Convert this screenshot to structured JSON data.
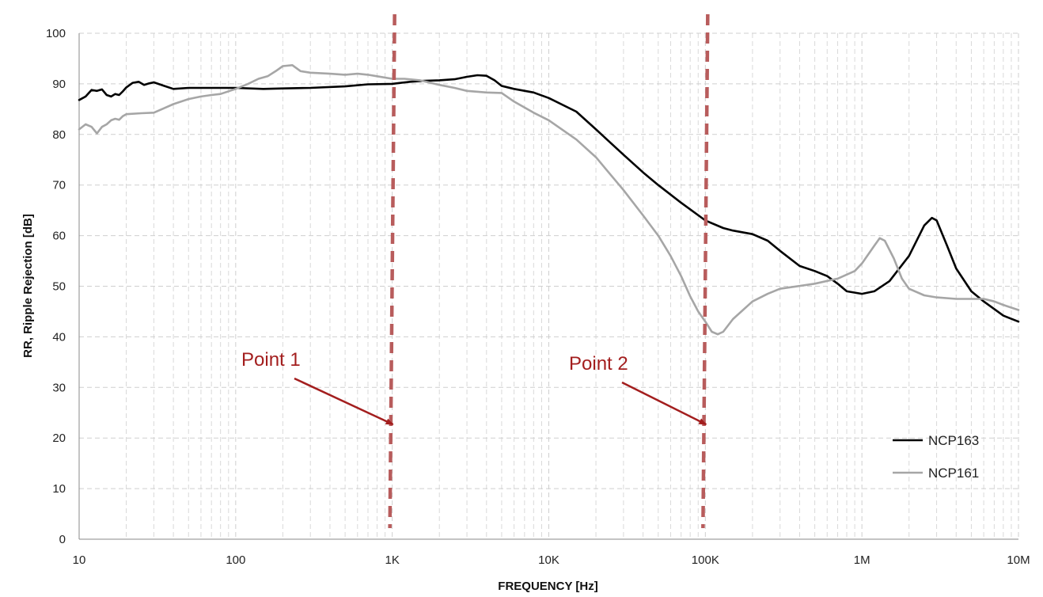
{
  "chart_data": {
    "type": "line",
    "title": "",
    "xlabel": "FREQUENCY [Hz]",
    "ylabel": "RR, Ripple Rejection [dB]",
    "x_scale": "log",
    "xlim": [
      10,
      10000000
    ],
    "ylim": [
      0,
      100
    ],
    "y_ticks": [
      0,
      10,
      20,
      30,
      40,
      50,
      60,
      70,
      80,
      90,
      100
    ],
    "x_ticks": [
      {
        "value": 10,
        "label": "10"
      },
      {
        "value": 100,
        "label": "100"
      },
      {
        "value": 1000,
        "label": "1K"
      },
      {
        "value": 10000,
        "label": "10K"
      },
      {
        "value": 100000,
        "label": "100K"
      },
      {
        "value": 1000000,
        "label": "1M"
      },
      {
        "value": 10000000,
        "label": "10M"
      }
    ],
    "grid": true,
    "legend_position": "bottom-right",
    "series": [
      {
        "name": "NCP163",
        "color": "#000000",
        "points": [
          [
            10,
            86.8
          ],
          [
            11,
            87.5
          ],
          [
            12,
            88.8
          ],
          [
            13,
            88.6
          ],
          [
            14,
            88.9
          ],
          [
            15,
            87.8
          ],
          [
            16,
            87.5
          ],
          [
            17,
            88.0
          ],
          [
            18,
            87.8
          ],
          [
            19,
            88.5
          ],
          [
            20,
            89.3
          ],
          [
            22,
            90.2
          ],
          [
            24,
            90.4
          ],
          [
            26,
            89.8
          ],
          [
            28,
            90.1
          ],
          [
            30,
            90.3
          ],
          [
            35,
            89.6
          ],
          [
            40,
            89.0
          ],
          [
            50,
            89.2
          ],
          [
            70,
            89.2
          ],
          [
            100,
            89.2
          ],
          [
            150,
            89.0
          ],
          [
            200,
            89.1
          ],
          [
            300,
            89.2
          ],
          [
            500,
            89.5
          ],
          [
            700,
            89.9
          ],
          [
            1000,
            90.0
          ],
          [
            1300,
            90.4
          ],
          [
            1600,
            90.6
          ],
          [
            2000,
            90.7
          ],
          [
            2500,
            90.9
          ],
          [
            3000,
            91.4
          ],
          [
            3500,
            91.7
          ],
          [
            4000,
            91.6
          ],
          [
            4500,
            90.7
          ],
          [
            5000,
            89.6
          ],
          [
            6000,
            89.0
          ],
          [
            8000,
            88.3
          ],
          [
            10000,
            87.2
          ],
          [
            15000,
            84.5
          ],
          [
            20000,
            81.0
          ],
          [
            30000,
            76.0
          ],
          [
            40000,
            72.5
          ],
          [
            50000,
            70.0
          ],
          [
            70000,
            66.5
          ],
          [
            100000,
            63.0
          ],
          [
            130000,
            61.5
          ],
          [
            150000,
            61.0
          ],
          [
            200000,
            60.3
          ],
          [
            250000,
            59.0
          ],
          [
            300000,
            57.0
          ],
          [
            400000,
            54.0
          ],
          [
            500000,
            53.0
          ],
          [
            600000,
            52.0
          ],
          [
            700000,
            50.5
          ],
          [
            800000,
            49.0
          ],
          [
            1000000,
            48.5
          ],
          [
            1200000,
            49.0
          ],
          [
            1500000,
            51.0
          ],
          [
            2000000,
            56.0
          ],
          [
            2500000,
            62.0
          ],
          [
            2800000,
            63.5
          ],
          [
            3000000,
            63.0
          ],
          [
            3500000,
            58.0
          ],
          [
            4000000,
            53.5
          ],
          [
            5000000,
            49.0
          ],
          [
            6000000,
            47.0
          ],
          [
            7000000,
            45.5
          ],
          [
            8000000,
            44.2
          ],
          [
            10000000,
            43.0
          ]
        ]
      },
      {
        "name": "NCP161",
        "color": "#a6a6a6",
        "points": [
          [
            10,
            81.0
          ],
          [
            11,
            82.0
          ],
          [
            12,
            81.5
          ],
          [
            13,
            80.2
          ],
          [
            14,
            81.5
          ],
          [
            15,
            82.0
          ],
          [
            16,
            82.8
          ],
          [
            17,
            83.1
          ],
          [
            18,
            82.9
          ],
          [
            19,
            83.6
          ],
          [
            20,
            84.0
          ],
          [
            25,
            84.2
          ],
          [
            30,
            84.3
          ],
          [
            35,
            85.2
          ],
          [
            40,
            86.0
          ],
          [
            50,
            87.0
          ],
          [
            60,
            87.5
          ],
          [
            70,
            87.8
          ],
          [
            80,
            88.0
          ],
          [
            100,
            89.0
          ],
          [
            120,
            90.0
          ],
          [
            140,
            91.0
          ],
          [
            160,
            91.5
          ],
          [
            180,
            92.5
          ],
          [
            200,
            93.5
          ],
          [
            230,
            93.7
          ],
          [
            260,
            92.5
          ],
          [
            300,
            92.2
          ],
          [
            400,
            92.0
          ],
          [
            500,
            91.8
          ],
          [
            600,
            92.0
          ],
          [
            700,
            91.8
          ],
          [
            800,
            91.5
          ],
          [
            1000,
            91.0
          ],
          [
            1200,
            91.0
          ],
          [
            1500,
            90.7
          ],
          [
            2000,
            89.8
          ],
          [
            2500,
            89.2
          ],
          [
            3000,
            88.6
          ],
          [
            4000,
            88.3
          ],
          [
            5000,
            88.2
          ],
          [
            6000,
            86.5
          ],
          [
            8000,
            84.3
          ],
          [
            10000,
            82.8
          ],
          [
            15000,
            79.0
          ],
          [
            20000,
            75.5
          ],
          [
            30000,
            69.0
          ],
          [
            40000,
            64.0
          ],
          [
            50000,
            60.0
          ],
          [
            60000,
            56.0
          ],
          [
            70000,
            52.0
          ],
          [
            80000,
            48.0
          ],
          [
            90000,
            45.0
          ],
          [
            100000,
            43.0
          ],
          [
            110000,
            41.0
          ],
          [
            120000,
            40.5
          ],
          [
            130000,
            41.0
          ],
          [
            150000,
            43.5
          ],
          [
            200000,
            47.0
          ],
          [
            250000,
            48.5
          ],
          [
            300000,
            49.5
          ],
          [
            500000,
            50.5
          ],
          [
            700000,
            51.5
          ],
          [
            900000,
            53.0
          ],
          [
            1000000,
            54.5
          ],
          [
            1200000,
            58.0
          ],
          [
            1300000,
            59.5
          ],
          [
            1400000,
            59.0
          ],
          [
            1600000,
            55.5
          ],
          [
            1800000,
            51.5
          ],
          [
            2000000,
            49.5
          ],
          [
            2500000,
            48.2
          ],
          [
            3000000,
            47.8
          ],
          [
            4000000,
            47.5
          ],
          [
            5000000,
            47.5
          ],
          [
            6000000,
            47.5
          ],
          [
            7000000,
            47.0
          ],
          [
            8000000,
            46.3
          ],
          [
            10000000,
            45.3
          ]
        ]
      }
    ],
    "markers": [
      {
        "x": 1000,
        "style": "dashed",
        "color": "#b85c5c"
      },
      {
        "x": 100000,
        "style": "dashed",
        "color": "#b85c5c"
      }
    ],
    "annotations": [
      {
        "text": "Point 1",
        "target_x": 1000,
        "target_y": 23
      },
      {
        "text": "Point 2",
        "target_x": 100000,
        "target_y": 23
      }
    ]
  }
}
